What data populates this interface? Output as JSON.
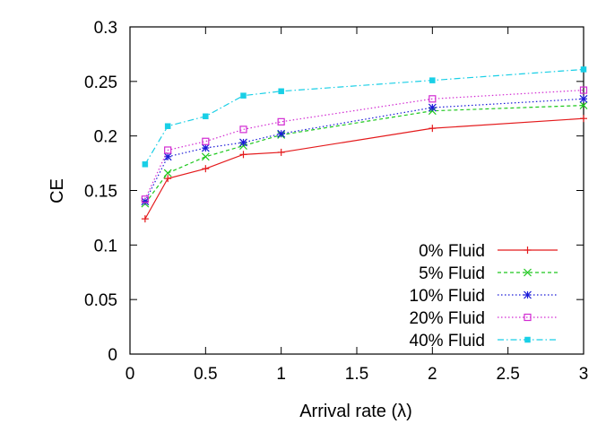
{
  "chart_data": {
    "type": "line",
    "xlabel": "Arrival rate (λ)",
    "ylabel": "CE",
    "xlim": [
      0,
      3
    ],
    "ylim": [
      0,
      0.3
    ],
    "x_ticks": [
      "0",
      "0.5",
      "1",
      "1.5",
      "2",
      "2.5",
      "3"
    ],
    "y_ticks": [
      "0",
      "0.05",
      "0.1",
      "0.15",
      "0.2",
      "0.25",
      "0.3"
    ],
    "grid": false,
    "legend_position": "bottom-right",
    "x": [
      0.1,
      0.25,
      0.5,
      0.75,
      1.0,
      2.0,
      3.0
    ],
    "series": [
      {
        "name": "0% Fluid",
        "color": "#e41a1c",
        "line": "solid",
        "marker": "plus",
        "values": [
          0.124,
          0.161,
          0.17,
          0.183,
          0.185,
          0.207,
          0.216
        ]
      },
      {
        "name": "5% Fluid",
        "color": "#1ec81e",
        "line": "dashed",
        "marker": "cross",
        "values": [
          0.138,
          0.166,
          0.181,
          0.191,
          0.201,
          0.223,
          0.228
        ]
      },
      {
        "name": "10% Fluid",
        "color": "#1a1ad8",
        "line": "dotted",
        "marker": "star",
        "values": [
          0.14,
          0.181,
          0.189,
          0.194,
          0.202,
          0.226,
          0.234
        ]
      },
      {
        "name": "20% Fluid",
        "color": "#d22bd2",
        "line": "dotted",
        "marker": "open-square",
        "values": [
          0.142,
          0.187,
          0.195,
          0.206,
          0.213,
          0.234,
          0.242
        ]
      },
      {
        "name": "40% Fluid",
        "color": "#19cfe6",
        "line": "dashdot",
        "marker": "filled-square",
        "values": [
          0.174,
          0.209,
          0.218,
          0.237,
          0.241,
          0.251,
          0.261
        ]
      }
    ]
  }
}
